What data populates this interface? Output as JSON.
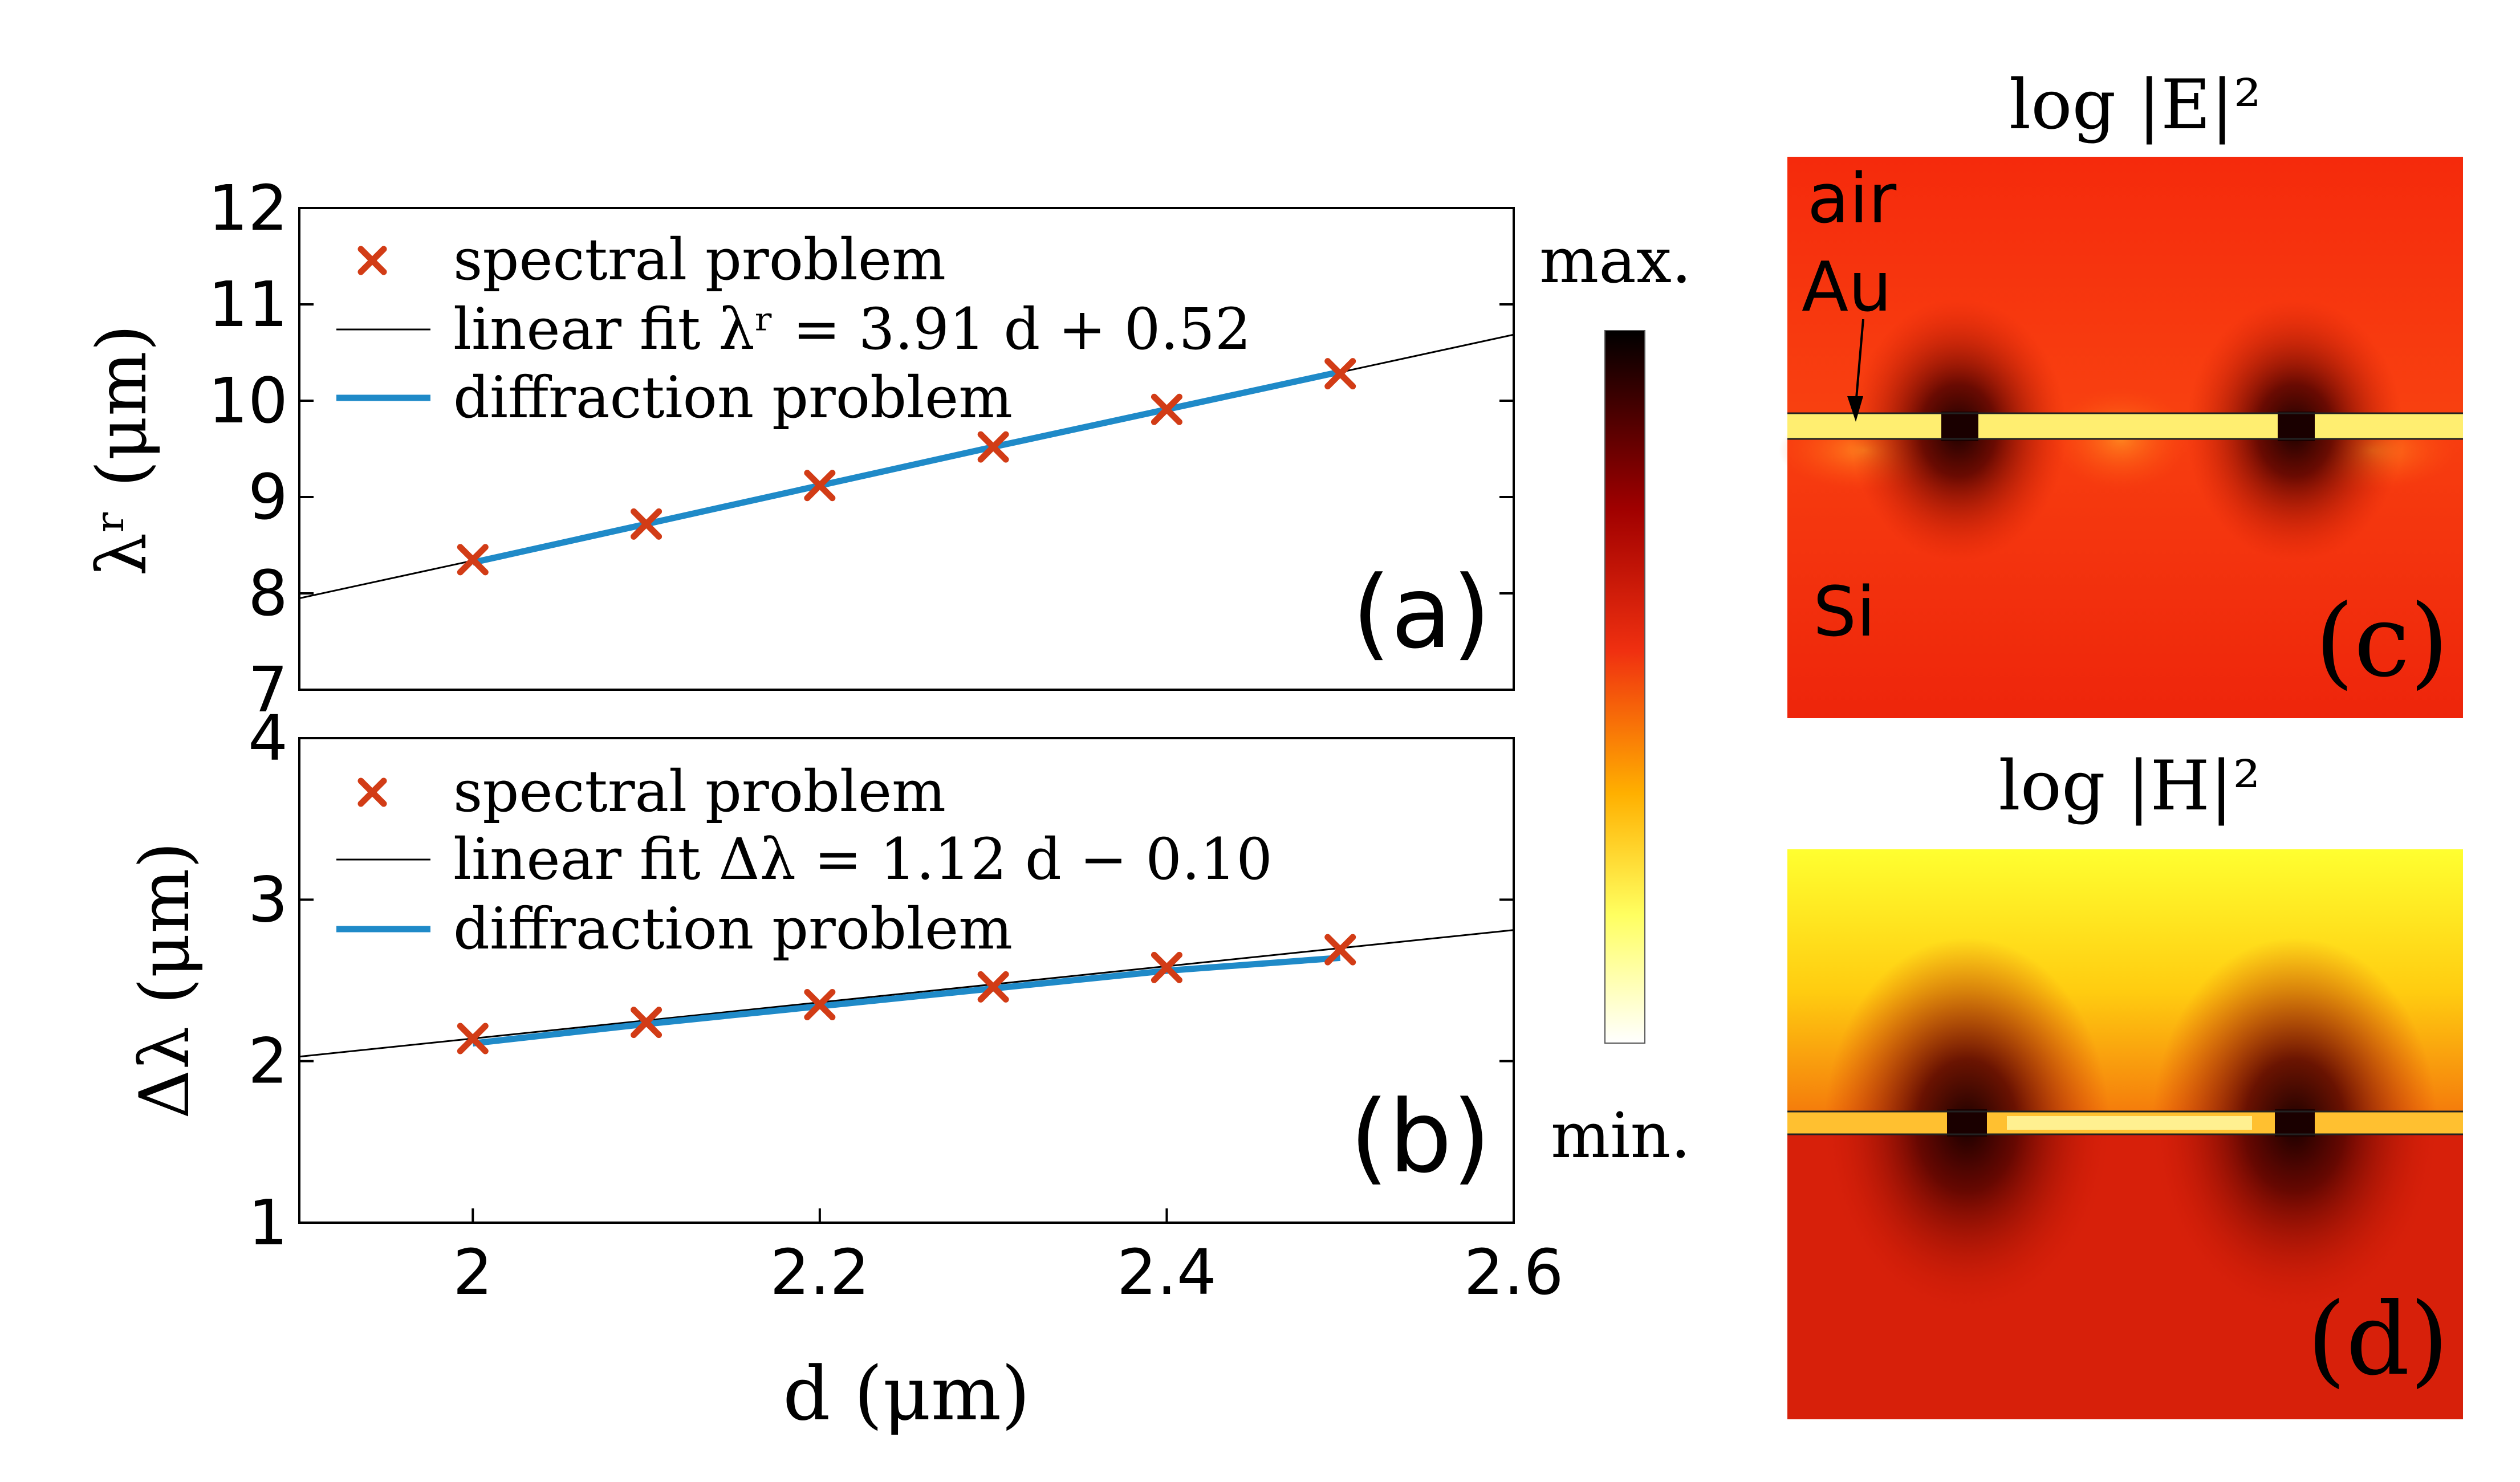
{
  "colors": {
    "marker": "#d23c16",
    "fit_line": "#000000",
    "diffraction_line": "#1f8ac8",
    "map_red": "#ef2a0d",
    "map_dark": "#1a0000",
    "map_yellow": "#ffff30"
  },
  "chart_data": [
    {
      "panel": "(a)",
      "type": "line",
      "ylabel": "λʳ (μm)",
      "xlim": [
        1.9,
        2.6
      ],
      "ylim": [
        7,
        12
      ],
      "xticks": [],
      "yticks": [
        "7",
        "8",
        "9",
        "10",
        "11",
        "12"
      ],
      "legend_position": "top-left",
      "legend": [
        "spectral problem",
        "linear fit λʳ = 3.91 d + 0.52",
        "diffraction problem"
      ],
      "series": [
        {
          "name": "spectral problem",
          "kind": "markers",
          "x": [
            2.0,
            2.1,
            2.2,
            2.3,
            2.4,
            2.5
          ],
          "y": [
            8.35,
            8.72,
            9.12,
            9.52,
            9.91,
            10.28
          ]
        },
        {
          "name": "linear fit λʳ = 3.91 d + 0.52",
          "kind": "fit",
          "slope": 3.91,
          "intercept": 0.52
        },
        {
          "name": "diffraction problem",
          "kind": "line",
          "x": [
            2.0,
            2.1,
            2.2,
            2.3,
            2.4,
            2.5
          ],
          "y": [
            8.32,
            8.72,
            9.12,
            9.52,
            9.91,
            10.3
          ]
        }
      ]
    },
    {
      "panel": "(b)",
      "type": "line",
      "xlabel": "d (μm)",
      "ylabel": "Δλ (μm)",
      "xlim": [
        1.9,
        2.6
      ],
      "ylim": [
        1,
        4
      ],
      "xticks": [
        "2",
        "2.2",
        "2.4",
        "2.6"
      ],
      "yticks": [
        "1",
        "2",
        "3",
        "4"
      ],
      "legend_position": "top-left",
      "legend": [
        "spectral problem",
        "linear fit Δλ = 1.12 d − 0.10",
        "diffraction problem"
      ],
      "series": [
        {
          "name": "spectral problem",
          "kind": "markers",
          "x": [
            2.0,
            2.1,
            2.2,
            2.3,
            2.4,
            2.5
          ],
          "y": [
            2.14,
            2.24,
            2.35,
            2.46,
            2.58,
            2.69
          ]
        },
        {
          "name": "linear fit Δλ = 1.12 d − 0.10",
          "kind": "fit",
          "slope": 1.12,
          "intercept": -0.1
        },
        {
          "name": "diffraction problem",
          "kind": "line",
          "x": [
            2.0,
            2.1,
            2.2,
            2.3,
            2.4,
            2.5
          ],
          "y": [
            2.11,
            2.23,
            2.34,
            2.45,
            2.56,
            2.64
          ]
        }
      ]
    },
    {
      "panel": "(c)",
      "type": "heatmap",
      "title": "log |E|²",
      "labels": [
        "air",
        "Au",
        "Si"
      ]
    },
    {
      "panel": "(d)",
      "type": "heatmap",
      "title": "log |H|²"
    }
  ],
  "colorbar": {
    "max_label": "max.",
    "min_label": "min."
  }
}
